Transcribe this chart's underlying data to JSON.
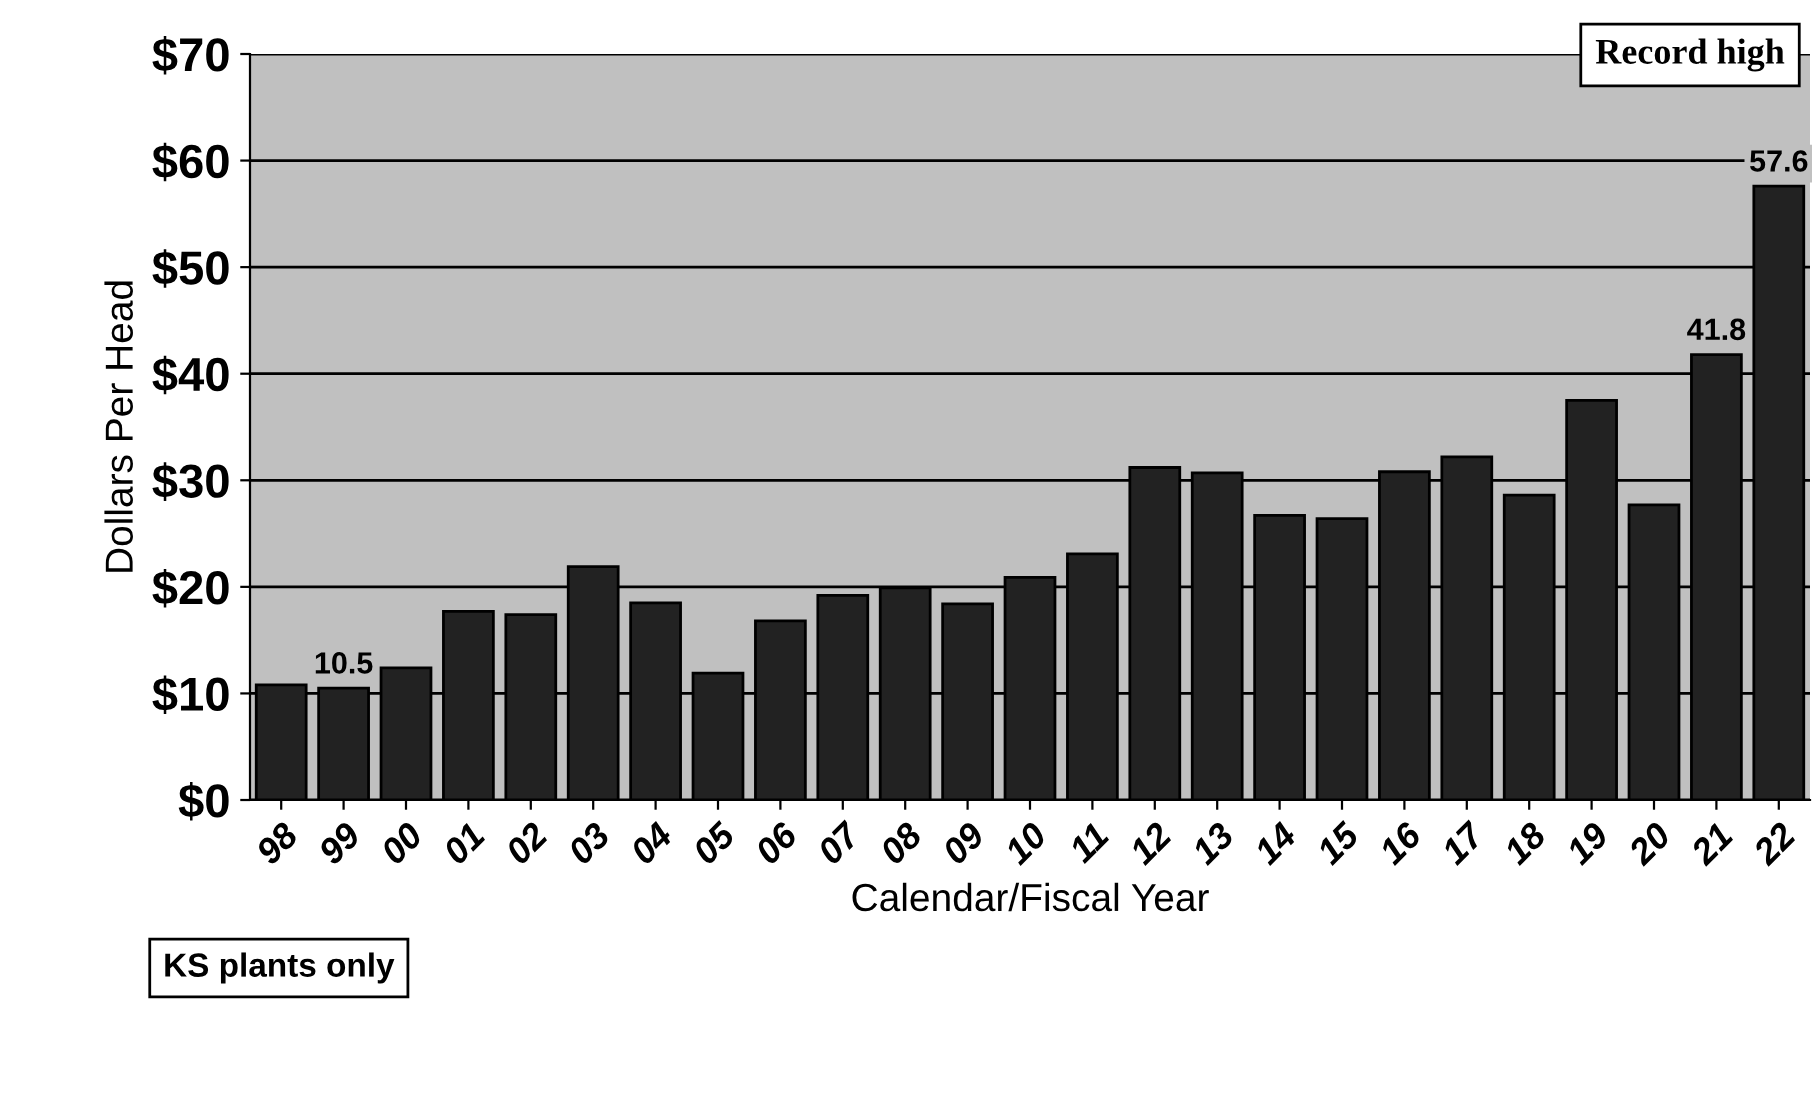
{
  "chart_data": {
    "type": "bar",
    "xlabel": "Calendar/Fiscal Year",
    "ylabel": "Dollars Per Head",
    "categories": [
      "98",
      "99",
      "00",
      "01",
      "02",
      "03",
      "04",
      "05",
      "06",
      "07",
      "08",
      "09",
      "10",
      "11",
      "12",
      "13",
      "14",
      "15",
      "16",
      "17",
      "18",
      "19",
      "20",
      "21",
      "22"
    ],
    "values": [
      10.8,
      10.5,
      12.4,
      17.7,
      17.4,
      21.9,
      18.5,
      11.9,
      16.8,
      19.2,
      19.9,
      18.4,
      20.9,
      23.1,
      31.2,
      30.7,
      26.7,
      26.4,
      30.8,
      32.2,
      28.6,
      37.5,
      27.7,
      41.8,
      57.6
    ],
    "value_labels": [
      null,
      "10.5",
      null,
      null,
      null,
      null,
      null,
      null,
      null,
      null,
      null,
      null,
      null,
      null,
      null,
      null,
      null,
      null,
      null,
      null,
      null,
      null,
      null,
      "41.8",
      "57.6"
    ],
    "color": "#222222",
    "ylim": [
      0,
      70
    ],
    "yticks": [
      {
        "value": 0,
        "label": "$0"
      },
      {
        "value": 10,
        "label": "$10"
      },
      {
        "value": 20,
        "label": "$20"
      },
      {
        "value": 30,
        "label": "$30"
      },
      {
        "value": 40,
        "label": "$40"
      },
      {
        "value": 50,
        "label": "$50"
      },
      {
        "value": 60,
        "label": "$60"
      },
      {
        "value": 70,
        "label": "$70"
      }
    ],
    "grid": "y",
    "annotations": [
      "Record high",
      "KS plants only"
    ]
  }
}
